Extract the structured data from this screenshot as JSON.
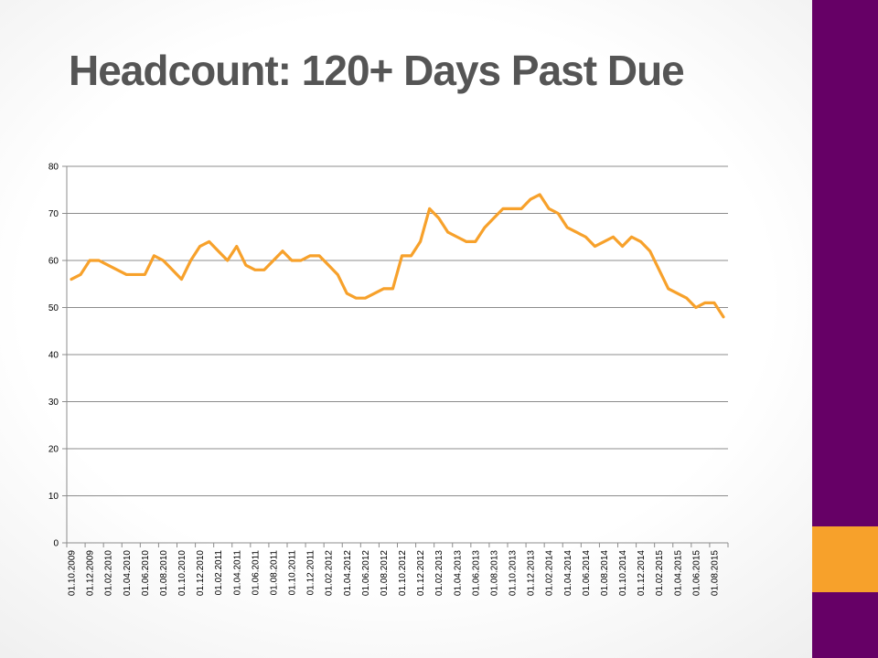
{
  "slide": {
    "title": "Headcount: 120+ Days Past Due"
  },
  "colors": {
    "purple": "#660066",
    "orange": "#F7A12B",
    "line": "#F7A12B",
    "grid": "#8c8c8c",
    "title": "#555555"
  },
  "chart_data": {
    "type": "line",
    "title": "",
    "xlabel": "",
    "ylabel": "",
    "ylim": [
      0,
      80
    ],
    "yticks": [
      0,
      10,
      20,
      30,
      40,
      50,
      60,
      70,
      80
    ],
    "grid": "horizontal",
    "legend": "none",
    "x": [
      "01.10.2009",
      "01.11.2009",
      "01.12.2009",
      "01.01.2010",
      "01.02.2010",
      "01.03.2010",
      "01.04.2010",
      "01.05.2010",
      "01.06.2010",
      "01.07.2010",
      "01.08.2010",
      "01.09.2010",
      "01.10.2010",
      "01.11.2010",
      "01.12.2010",
      "01.01.2011",
      "01.02.2011",
      "01.03.2011",
      "01.04.2011",
      "01.05.2011",
      "01.06.2011",
      "01.07.2011",
      "01.08.2011",
      "01.09.2011",
      "01.10.2011",
      "01.11.2011",
      "01.12.2011",
      "01.01.2012",
      "01.02.2012",
      "01.03.2012",
      "01.04.2012",
      "01.05.2012",
      "01.06.2012",
      "01.07.2012",
      "01.08.2012",
      "01.09.2012",
      "01.10.2012",
      "01.11.2012",
      "01.12.2012",
      "01.01.2013",
      "01.02.2013",
      "01.03.2013",
      "01.04.2013",
      "01.05.2013",
      "01.06.2013",
      "01.07.2013",
      "01.08.2013",
      "01.09.2013",
      "01.10.2013",
      "01.11.2013",
      "01.12.2013",
      "01.01.2014",
      "01.02.2014",
      "01.03.2014",
      "01.04.2014",
      "01.05.2014",
      "01.06.2014",
      "01.07.2014",
      "01.08.2014",
      "01.09.2014",
      "01.10.2014",
      "01.11.2014",
      "01.12.2014",
      "01.01.2015",
      "01.02.2015",
      "01.03.2015",
      "01.04.2015",
      "01.05.2015",
      "01.06.2015",
      "01.07.2015",
      "01.08.2015",
      "01.09.2015"
    ],
    "x_tick_labels": [
      "01.10.2009",
      "01.12.2009",
      "01.02.2010",
      "01.04.2010",
      "01.06.2010",
      "01.08.2010",
      "01.10.2010",
      "01.12.2010",
      "01.02.2011",
      "01.04.2011",
      "01.06.2011",
      "01.08.2011",
      "01.10.2011",
      "01.12.2011",
      "01.02.2012",
      "01.04.2012",
      "01.06.2012",
      "01.08.2012",
      "01.10.2012",
      "01.12.2012",
      "01.02.2013",
      "01.04.2013",
      "01.06.2013",
      "01.08.2013",
      "01.10.2013",
      "01.12.2013",
      "01.02.2014",
      "01.04.2014",
      "01.06.2014",
      "01.08.2014",
      "01.10.2014",
      "01.12.2014",
      "01.02.2015",
      "01.04.2015",
      "01.06.2015",
      "01.08.2015"
    ],
    "series": [
      {
        "values": [
          56,
          57,
          60,
          60,
          59,
          58,
          57,
          57,
          57,
          61,
          60,
          58,
          56,
          60,
          63,
          64,
          62,
          60,
          63,
          59,
          58,
          58,
          60,
          62,
          60,
          60,
          61,
          61,
          59,
          57,
          53,
          52,
          52,
          53,
          54,
          54,
          61,
          61,
          64,
          71,
          69,
          66,
          65,
          64,
          64,
          67,
          69,
          71,
          71,
          71,
          73,
          74,
          71,
          70,
          67,
          66,
          65,
          63,
          64,
          65,
          63,
          65,
          64,
          62,
          58,
          54,
          53,
          52,
          50,
          51,
          51,
          48
        ]
      }
    ]
  }
}
